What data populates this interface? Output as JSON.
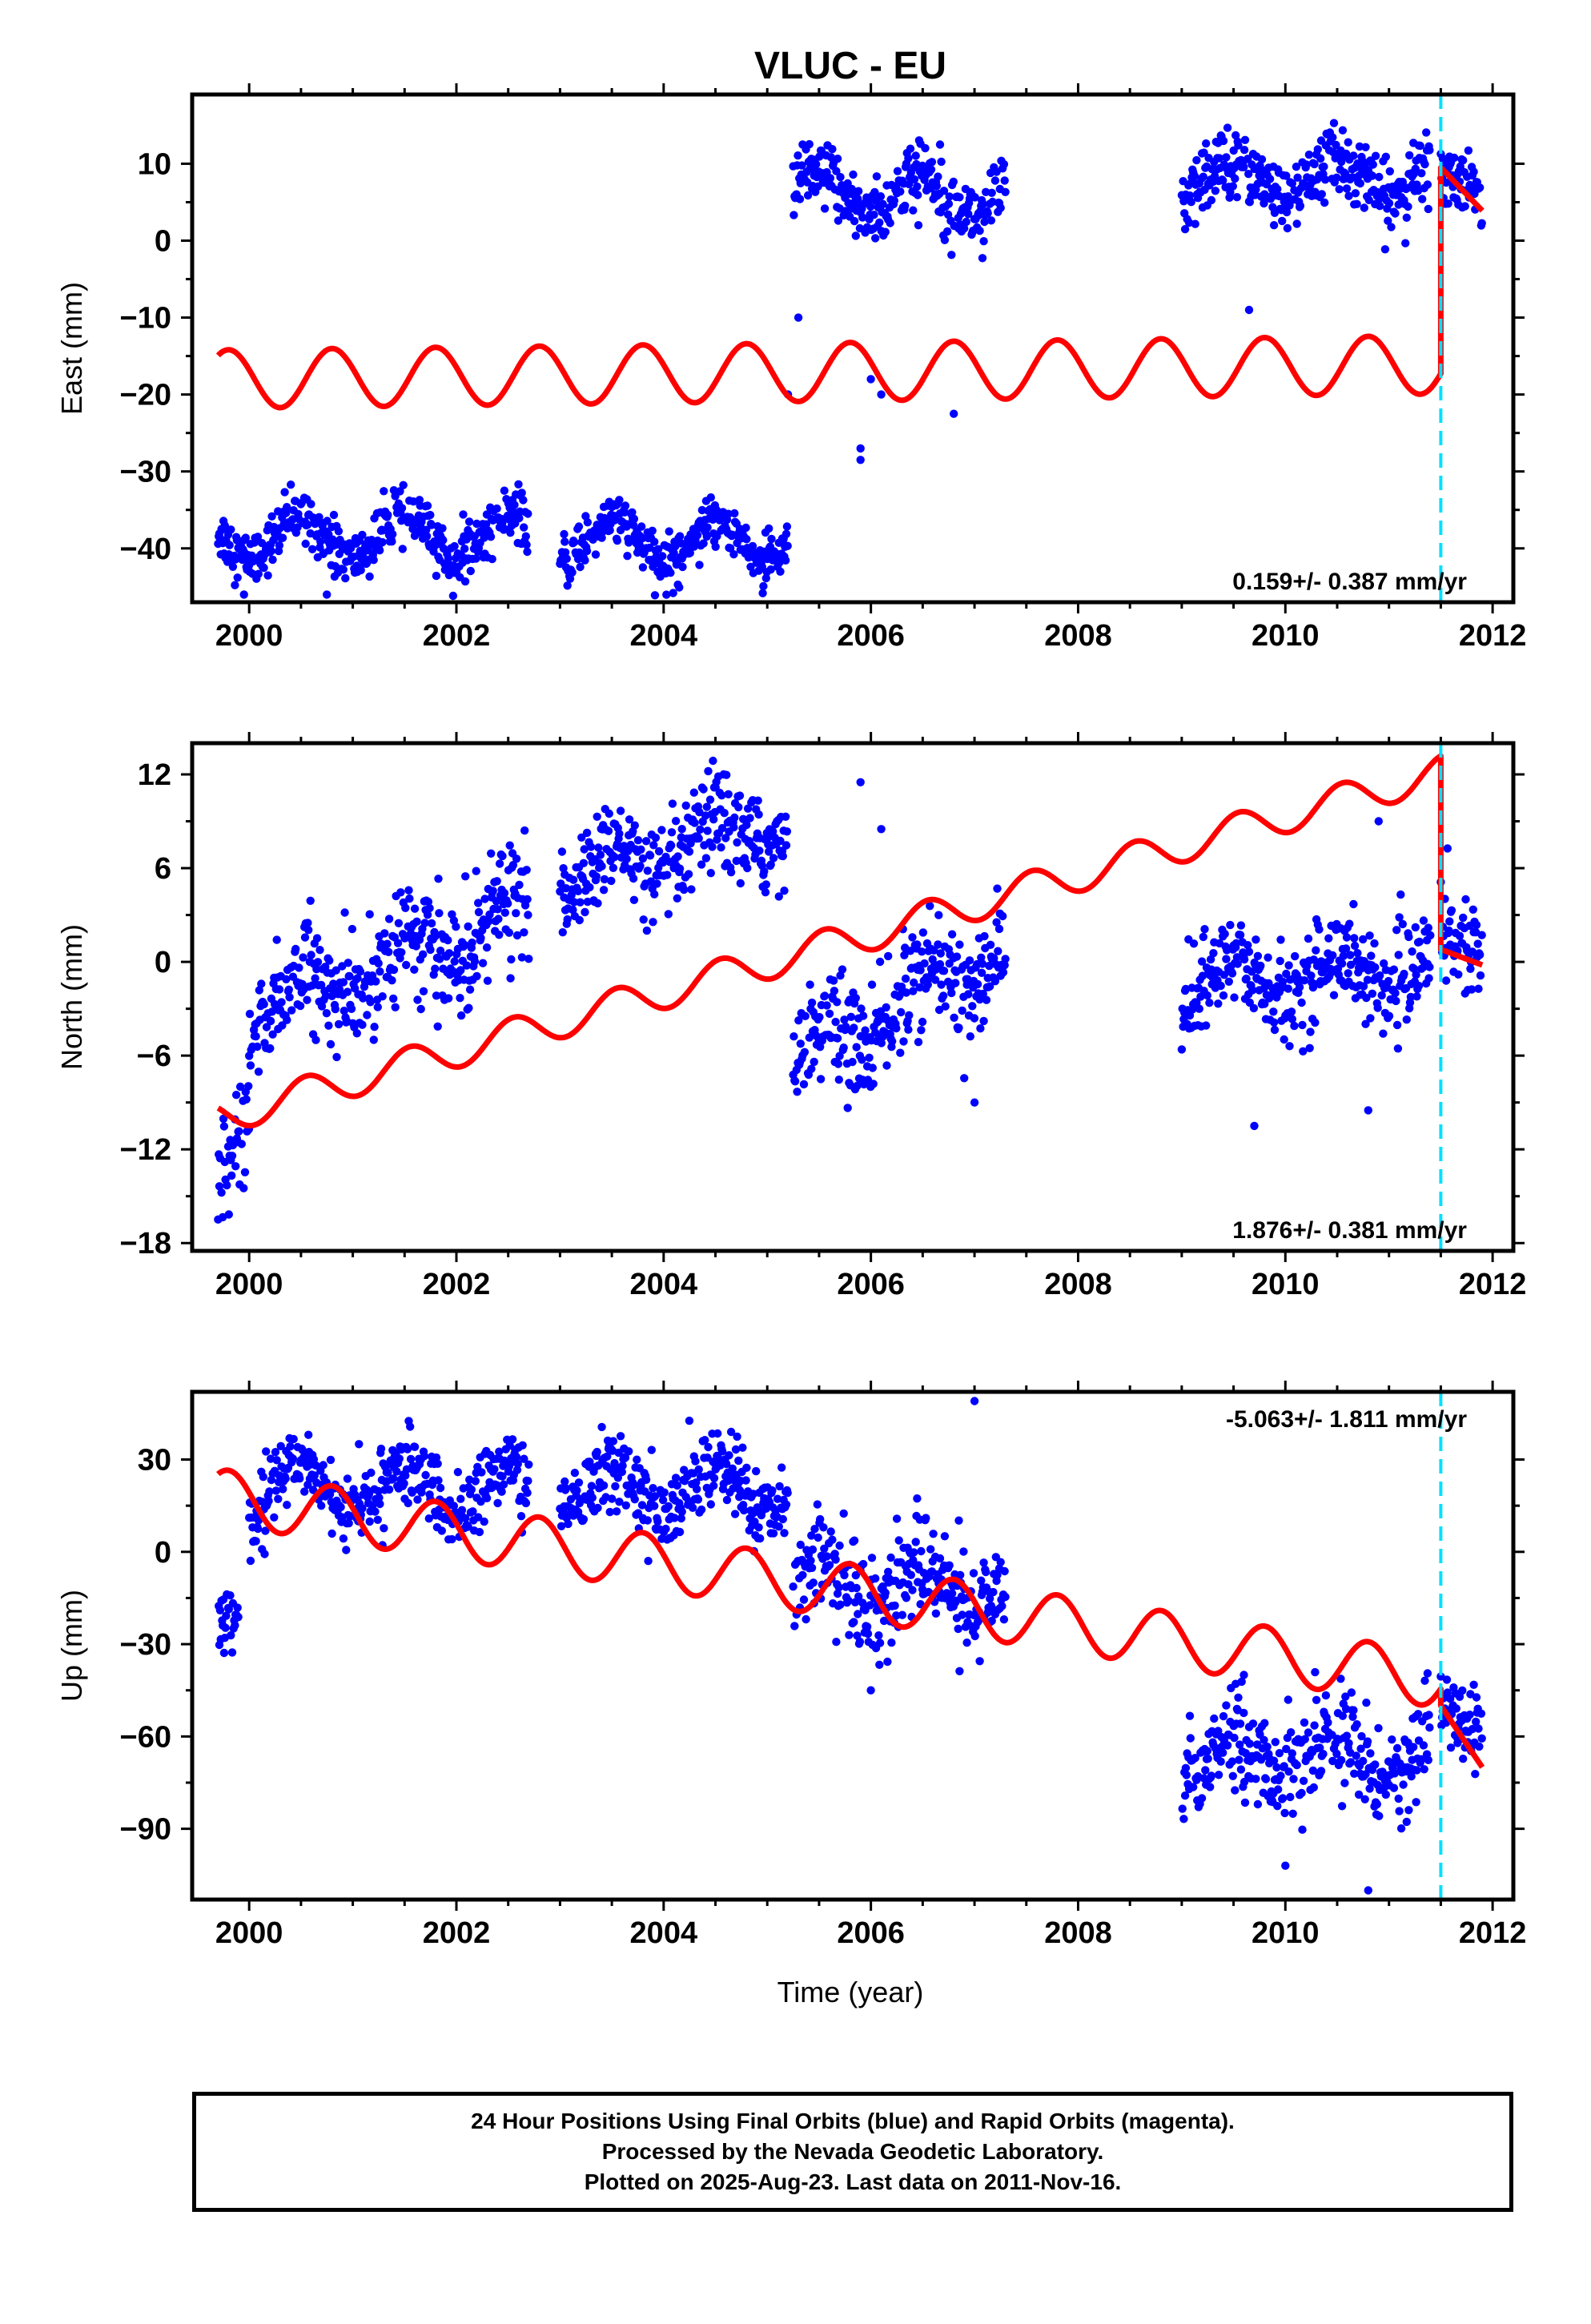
{
  "chart_data": {
    "type": "scatter",
    "title": "VLUC - EU",
    "xlabel": "Time (year)",
    "x_ticks": [
      2000,
      2002,
      2004,
      2006,
      2008,
      2010,
      2012
    ],
    "xlim": [
      1999.45,
      2012.2
    ],
    "event_line_x": 2011.5,
    "event_line_color": "#00e0ff",
    "point_color": "#0000ff",
    "model_color": "#ff0000",
    "grid": false,
    "panels": [
      {
        "key": "east",
        "ylabel": "East (mm)",
        "ylim": [
          -47,
          19
        ],
        "y_ticks": [
          10,
          0,
          -10,
          -20,
          -30,
          -40
        ],
        "rate_text": "0.159+/- 0.387 mm/yr",
        "rate_position": "bottom-right",
        "show_event_line": true,
        "data_segments": [
          {
            "start": 1999.7,
            "end": 2002.7,
            "base": -38.5,
            "amp": 2.8,
            "noise": 1.7
          },
          {
            "start": 2003.0,
            "end": 2005.2,
            "base": -39.0,
            "amp": 3.0,
            "noise": 1.7
          },
          {
            "start": 2005.25,
            "end": 2007.3,
            "base": 6.0,
            "amp": 2.5,
            "noise": 2.2
          },
          {
            "start": 2009.0,
            "end": 2011.4,
            "base": 8.0,
            "amp": 2.6,
            "noise": 2.2
          },
          {
            "start": 2011.5,
            "end": 2011.9,
            "base": 7.0,
            "amp": 2.0,
            "noise": 2.0
          }
        ],
        "outliers": [
          [
            2005.2,
            -20
          ],
          [
            2005.3,
            -10
          ],
          [
            2005.9,
            -27
          ],
          [
            2005.9,
            -28.5
          ],
          [
            2006.0,
            -18
          ],
          [
            2006.1,
            -20
          ],
          [
            2006.8,
            -22.5
          ],
          [
            2009.65,
            -9
          ],
          [
            1999.95,
            -46
          ],
          [
            2000.75,
            -46
          ]
        ],
        "model_segments": [
          {
            "start": 1999.7,
            "end": 2011.5,
            "y0": -18.0,
            "slope": 0.159,
            "amp": 3.8,
            "phase": 0.55
          },
          {
            "start": 2011.5,
            "end": 2011.9,
            "y0": 9.5,
            "slope": -14.0,
            "amp": 0,
            "phase": 0
          }
        ]
      },
      {
        "key": "north",
        "ylabel": "North (mm)",
        "ylim": [
          -18.5,
          14
        ],
        "y_ticks": [
          12,
          6,
          0,
          -6,
          -12,
          -18
        ],
        "rate_text": "1.876+/- 0.381 mm/yr",
        "rate_position": "bottom-right",
        "show_event_line": true,
        "data_segments": [
          {
            "start": 1999.7,
            "end": 2000.0,
            "base": -14.0,
            "amp": 0,
            "noise": 1.8,
            "slope": 14.0
          },
          {
            "start": 2000.0,
            "end": 2002.7,
            "base": -3.5,
            "amp": 1.5,
            "noise": 1.7,
            "slope": 2.5
          },
          {
            "start": 2003.0,
            "end": 2005.2,
            "base": 5.0,
            "amp": 1.3,
            "noise": 1.5,
            "slope": 1.8
          },
          {
            "start": 2005.25,
            "end": 2007.3,
            "base": -6.5,
            "amp": 1.4,
            "noise": 1.7,
            "slope": 3.6
          },
          {
            "start": 2009.0,
            "end": 2011.4,
            "base": -1.5,
            "amp": 1.3,
            "noise": 1.5,
            "slope": 0.5
          },
          {
            "start": 2011.5,
            "end": 2011.9,
            "base": 1.0,
            "amp": 1.0,
            "noise": 1.5,
            "slope": 0
          }
        ],
        "outliers": [
          [
            2005.9,
            11.5
          ],
          [
            2006.1,
            8.5
          ],
          [
            2007.0,
            -9
          ],
          [
            2009.7,
            -10.5
          ],
          [
            2010.8,
            -9.5
          ],
          [
            2010.9,
            9
          ]
        ],
        "model_segments": [
          {
            "start": 1999.7,
            "end": 2011.5,
            "y0": -10.0,
            "slope": 1.876,
            "amp": 1.1,
            "phase": 0.3
          },
          {
            "start": 2011.5,
            "end": 2011.9,
            "y0": 0.8,
            "slope": -2.5,
            "amp": 0,
            "phase": 0
          }
        ]
      },
      {
        "key": "up",
        "ylabel": "Up (mm)",
        "ylim": [
          -113,
          52
        ],
        "y_ticks": [
          30,
          0,
          -30,
          -60,
          -90
        ],
        "rate_text": "-5.063+/- 1.811 mm/yr",
        "rate_position": "top-right",
        "show_event_line": true,
        "data_segments": [
          {
            "start": 1999.7,
            "end": 1999.9,
            "base": -22.0,
            "amp": 0,
            "noise": 6.0,
            "slope": 0
          },
          {
            "start": 2000.0,
            "end": 2002.7,
            "base": 22.0,
            "amp": 8.0,
            "noise": 6.0,
            "slope": -1.0
          },
          {
            "start": 2003.0,
            "end": 2005.2,
            "base": 20.0,
            "amp": 8.0,
            "noise": 6.0,
            "slope": 0
          },
          {
            "start": 2005.25,
            "end": 2007.3,
            "base": -10.0,
            "amp": 8.0,
            "noise": 8.0,
            "slope": -1.0
          },
          {
            "start": 2009.0,
            "end": 2011.4,
            "base": -66.0,
            "amp": 6.0,
            "noise": 8.0,
            "slope": 0
          },
          {
            "start": 2011.5,
            "end": 2011.9,
            "base": -55.0,
            "amp": 5.0,
            "noise": 7.0,
            "slope": 0
          }
        ],
        "outliers": [
          [
            2007.0,
            49
          ],
          [
            2010.0,
            -102
          ],
          [
            2010.8,
            -110
          ],
          [
            2006.0,
            -45
          ],
          [
            2009.6,
            -40
          ]
        ],
        "model_segments": [
          {
            "start": 1999.7,
            "end": 2011.5,
            "y0": 18.0,
            "slope": -5.063,
            "amp": 9.0,
            "phase": 0.55
          },
          {
            "start": 2011.5,
            "end": 2011.9,
            "y0": -50.0,
            "slope": -50.0,
            "amp": 0,
            "phase": 0
          }
        ]
      }
    ]
  },
  "footer": {
    "line1": "24 Hour Positions Using Final Orbits (blue) and Rapid Orbits (magenta).",
    "line2": "Processed by the Nevada Geodetic Laboratory.",
    "line3": "Plotted on 2025-Aug-23. Last data on 2011-Nov-16."
  }
}
